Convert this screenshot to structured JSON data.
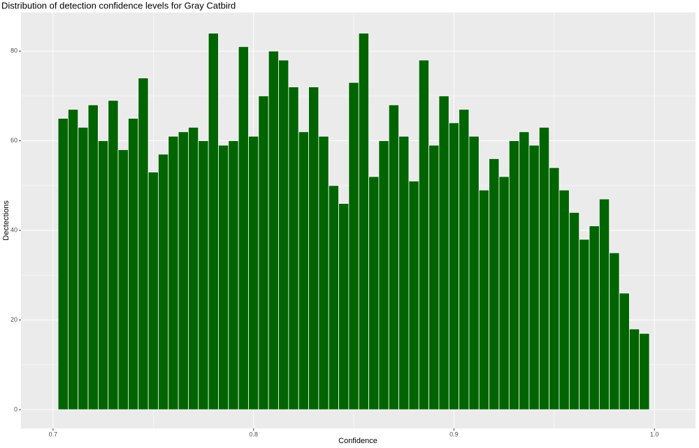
{
  "chart_data": {
    "type": "histogram",
    "title": "Distribution of detection confidence levels for Gray Catbird",
    "x_label": "Confidence",
    "y_label": "Dectections",
    "bins": [
      0.7025,
      0.7075,
      0.7125,
      0.7175,
      0.7225,
      0.7275,
      0.7325,
      0.7375,
      0.7425,
      0.7475,
      0.7525,
      0.7575,
      0.7625,
      0.7675,
      0.7725,
      0.7775,
      0.7825,
      0.7875,
      0.7925,
      0.7975,
      0.8025,
      0.8075,
      0.8125,
      0.8175,
      0.8225,
      0.8275,
      0.8325,
      0.8375,
      0.8425,
      0.8475,
      0.8525,
      0.8575,
      0.8625,
      0.8675,
      0.8725,
      0.8775,
      0.8825,
      0.8875,
      0.8925,
      0.8975,
      0.9025,
      0.9075,
      0.9125,
      0.9175,
      0.9225,
      0.9275,
      0.9325,
      0.9375,
      0.9425,
      0.9475,
      0.9525,
      0.9575,
      0.9625,
      0.9675,
      0.9725,
      0.9775,
      0.9825,
      0.9875,
      0.9925,
      0.9975
    ],
    "values": [
      65,
      67,
      63,
      68,
      60,
      69,
      58,
      65,
      74,
      53,
      57,
      61,
      62,
      63,
      60,
      84,
      59,
      60,
      81,
      61,
      70,
      80,
      78,
      72,
      62,
      72,
      61,
      50,
      46,
      73,
      84,
      52,
      60,
      68,
      61,
      51,
      78,
      59,
      70,
      64,
      67,
      61,
      49,
      56,
      52,
      60,
      62,
      59,
      63,
      54,
      49,
      44,
      38,
      41,
      47,
      35,
      26,
      18,
      17
    ],
    "color": "#006400",
    "xlim": [
      0.684,
      1.0205
    ],
    "xticks": [
      0.7,
      0.8,
      0.9,
      {
        "value": 1,
        "label": "1.0"
      }
    ],
    "x_minor_ticks": [
      0.75,
      0.85,
      0.95
    ],
    "ylim": [
      -4.2,
      88.6
    ],
    "yticks": [
      0,
      20,
      40,
      60,
      80
    ],
    "y_minor_ticks": [
      10,
      30,
      50,
      70
    ],
    "grid": true
  }
}
